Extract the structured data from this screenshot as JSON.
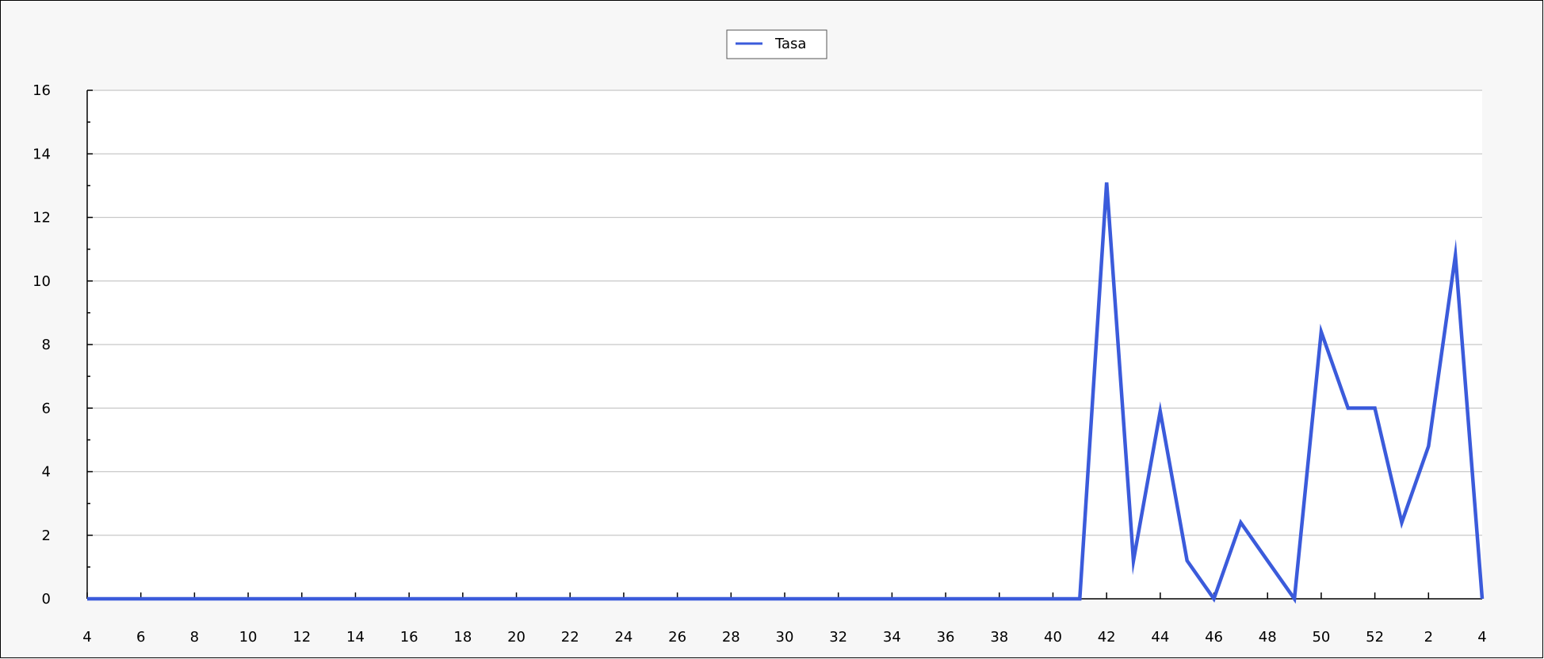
{
  "colors": {
    "series": "#3b5bdb",
    "frame_bg": "#f7f7f7",
    "plot_bg": "#ffffff",
    "grid": "#c8c8c8",
    "axis": "#000000"
  },
  "chart_data": {
    "type": "line",
    "title": "",
    "xlabel": "",
    "ylabel": "",
    "legend_position": "top-center",
    "grid": true,
    "ylim": [
      0,
      16
    ],
    "yticks": [
      "0",
      "2",
      "4",
      "6",
      "8",
      "10",
      "12",
      "14",
      "16"
    ],
    "xticks": [
      "4",
      "6",
      "8",
      "10",
      "12",
      "14",
      "16",
      "18",
      "20",
      "22",
      "24",
      "26",
      "28",
      "30",
      "32",
      "34",
      "36",
      "38",
      "40",
      "42",
      "44",
      "46",
      "48",
      "50",
      "52",
      "2",
      "4"
    ],
    "x": [
      "4",
      "5",
      "6",
      "7",
      "8",
      "9",
      "10",
      "11",
      "12",
      "13",
      "14",
      "15",
      "16",
      "17",
      "18",
      "19",
      "20",
      "21",
      "22",
      "23",
      "24",
      "25",
      "26",
      "27",
      "28",
      "29",
      "30",
      "31",
      "32",
      "33",
      "34",
      "35",
      "36",
      "37",
      "38",
      "39",
      "40",
      "41",
      "42",
      "43",
      "44",
      "45",
      "46",
      "47",
      "48",
      "49",
      "50",
      "51",
      "52",
      "1",
      "2",
      "3",
      "4"
    ],
    "series": [
      {
        "name": "Tasa",
        "values": [
          0,
          0,
          0,
          0,
          0,
          0,
          0,
          0,
          0,
          0,
          0,
          0,
          0,
          0,
          0,
          0,
          0,
          0,
          0,
          0,
          0,
          0,
          0,
          0,
          0,
          0,
          0,
          0,
          0,
          0,
          0,
          0,
          0,
          0,
          0,
          0,
          0,
          0,
          13.1,
          1.2,
          5.9,
          1.2,
          0,
          2.4,
          1.2,
          0,
          8.4,
          6,
          6,
          2.4,
          4.8,
          10.8,
          0
        ]
      }
    ]
  }
}
